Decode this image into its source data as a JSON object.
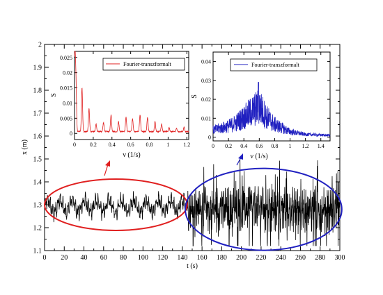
{
  "chart_data": [
    {
      "type": "line",
      "xlabel": "t (s)",
      "ylabel": "x (m)",
      "xlim": [
        0,
        300
      ],
      "ylim": [
        1.1,
        2.0
      ],
      "xticks": [
        0,
        10,
        20,
        30,
        40,
        50,
        60,
        70,
        80,
        90,
        100,
        110,
        120,
        130,
        140,
        150,
        160,
        170,
        180,
        190,
        200,
        210,
        220,
        230,
        240,
        250,
        260,
        270,
        280,
        290,
        300
      ],
      "yticks": [
        1.1,
        1.2,
        1.3,
        1.4,
        1.5,
        1.6,
        1.7,
        1.8,
        1.9,
        2
      ],
      "series": [
        {
          "color": "#000000",
          "description": "oscillating signal: small amplitude (~1.24-1.36) for t<145, large amplitude (~1.13-1.55) for t>145",
          "x": [
            0,
            10,
            20,
            30,
            40,
            50,
            60,
            70,
            80,
            90,
            100,
            110,
            120,
            130,
            140,
            145,
            150,
            160,
            170,
            180,
            190,
            200,
            210,
            220,
            230,
            240,
            250,
            260,
            270,
            280,
            290,
            300
          ],
          "y": [
            1.28,
            1.27,
            1.3,
            1.28,
            1.29,
            1.3,
            1.27,
            1.31,
            1.28,
            1.3,
            1.29,
            1.31,
            1.28,
            1.3,
            1.29,
            1.33,
            1.25,
            1.45,
            1.18,
            1.5,
            1.2,
            1.55,
            1.17,
            1.48,
            1.22,
            1.52,
            1.19,
            1.4,
            1.21,
            1.5,
            1.27,
            1.28
          ]
        }
      ],
      "annotations": [
        {
          "shape": "ellipse",
          "color": "#e02020",
          "t_range": [
            0,
            145
          ],
          "x_center": 1.3
        },
        {
          "shape": "ellipse",
          "color": "#2020c0",
          "t_range": [
            143,
            302
          ],
          "x_center": 1.28
        }
      ]
    },
    {
      "type": "line",
      "xlabel": "ν (1/s)",
      "ylabel": "S",
      "xlim": [
        0,
        1.22
      ],
      "ylim": [
        -0.002,
        0.027
      ],
      "xticks": [
        0,
        0.2,
        0.4,
        0.6,
        0.8,
        1,
        1.2
      ],
      "yticks": [
        0,
        0.005,
        0.01,
        0.015,
        0.02,
        0.025
      ],
      "legend": "top-right",
      "series": [
        {
          "name": "Fourier-transzformalt",
          "color": "#e02020",
          "description": "spectrum with sharp peaks at harmonics",
          "peaks": [
            {
              "freq": 0.003,
              "amp": 0.027
            },
            {
              "freq": 0.015,
              "amp": 0.016
            },
            {
              "freq": 0.08,
              "amp": 0.0145
            },
            {
              "freq": 0.155,
              "amp": 0.0075
            },
            {
              "freq": 0.23,
              "amp": 0.0025
            },
            {
              "freq": 0.31,
              "amp": 0.003
            },
            {
              "freq": 0.39,
              "amp": 0.0055
            },
            {
              "freq": 0.47,
              "amp": 0.0032
            },
            {
              "freq": 0.55,
              "amp": 0.0048
            },
            {
              "freq": 0.62,
              "amp": 0.0043
            },
            {
              "freq": 0.7,
              "amp": 0.0055
            },
            {
              "freq": 0.78,
              "amp": 0.0047
            },
            {
              "freq": 0.86,
              "amp": 0.0032
            },
            {
              "freq": 0.93,
              "amp": 0.0025
            },
            {
              "freq": 1.01,
              "amp": 0.0012
            },
            {
              "freq": 1.09,
              "amp": 0.0011
            },
            {
              "freq": 1.17,
              "amp": 0.0015
            }
          ],
          "baseline": 0.0004
        }
      ]
    },
    {
      "type": "line",
      "xlabel": "ν (1/s)",
      "ylabel": "S",
      "xlim": [
        0,
        1.52
      ],
      "ylim": [
        -0.002,
        0.045
      ],
      "xticks": [
        0,
        0.2,
        0.4,
        0.6,
        0.8,
        1,
        1.2,
        1.4
      ],
      "yticks": [
        0,
        0.01,
        0.02,
        0.03,
        0.04
      ],
      "legend": "top-right",
      "series": [
        {
          "name": "Fourier-transzformalt",
          "color": "#2020c0",
          "description": "broadband noisy spectrum peaking near 0.6",
          "envelope": [
            {
              "freq": 0.0,
              "amp": 0.004
            },
            {
              "freq": 0.1,
              "amp": 0.005
            },
            {
              "freq": 0.2,
              "amp": 0.006
            },
            {
              "freq": 0.3,
              "amp": 0.008
            },
            {
              "freq": 0.4,
              "amp": 0.011
            },
            {
              "freq": 0.5,
              "amp": 0.014
            },
            {
              "freq": 0.6,
              "amp": 0.017
            },
            {
              "freq": 0.7,
              "amp": 0.011
            },
            {
              "freq": 0.8,
              "amp": 0.007
            },
            {
              "freq": 0.9,
              "amp": 0.005
            },
            {
              "freq": 1.0,
              "amp": 0.003
            },
            {
              "freq": 1.2,
              "amp": 0.0015
            },
            {
              "freq": 1.5,
              "amp": 0.001
            }
          ],
          "max_peak": {
            "freq": 0.59,
            "amp": 0.029
          }
        }
      ]
    }
  ]
}
